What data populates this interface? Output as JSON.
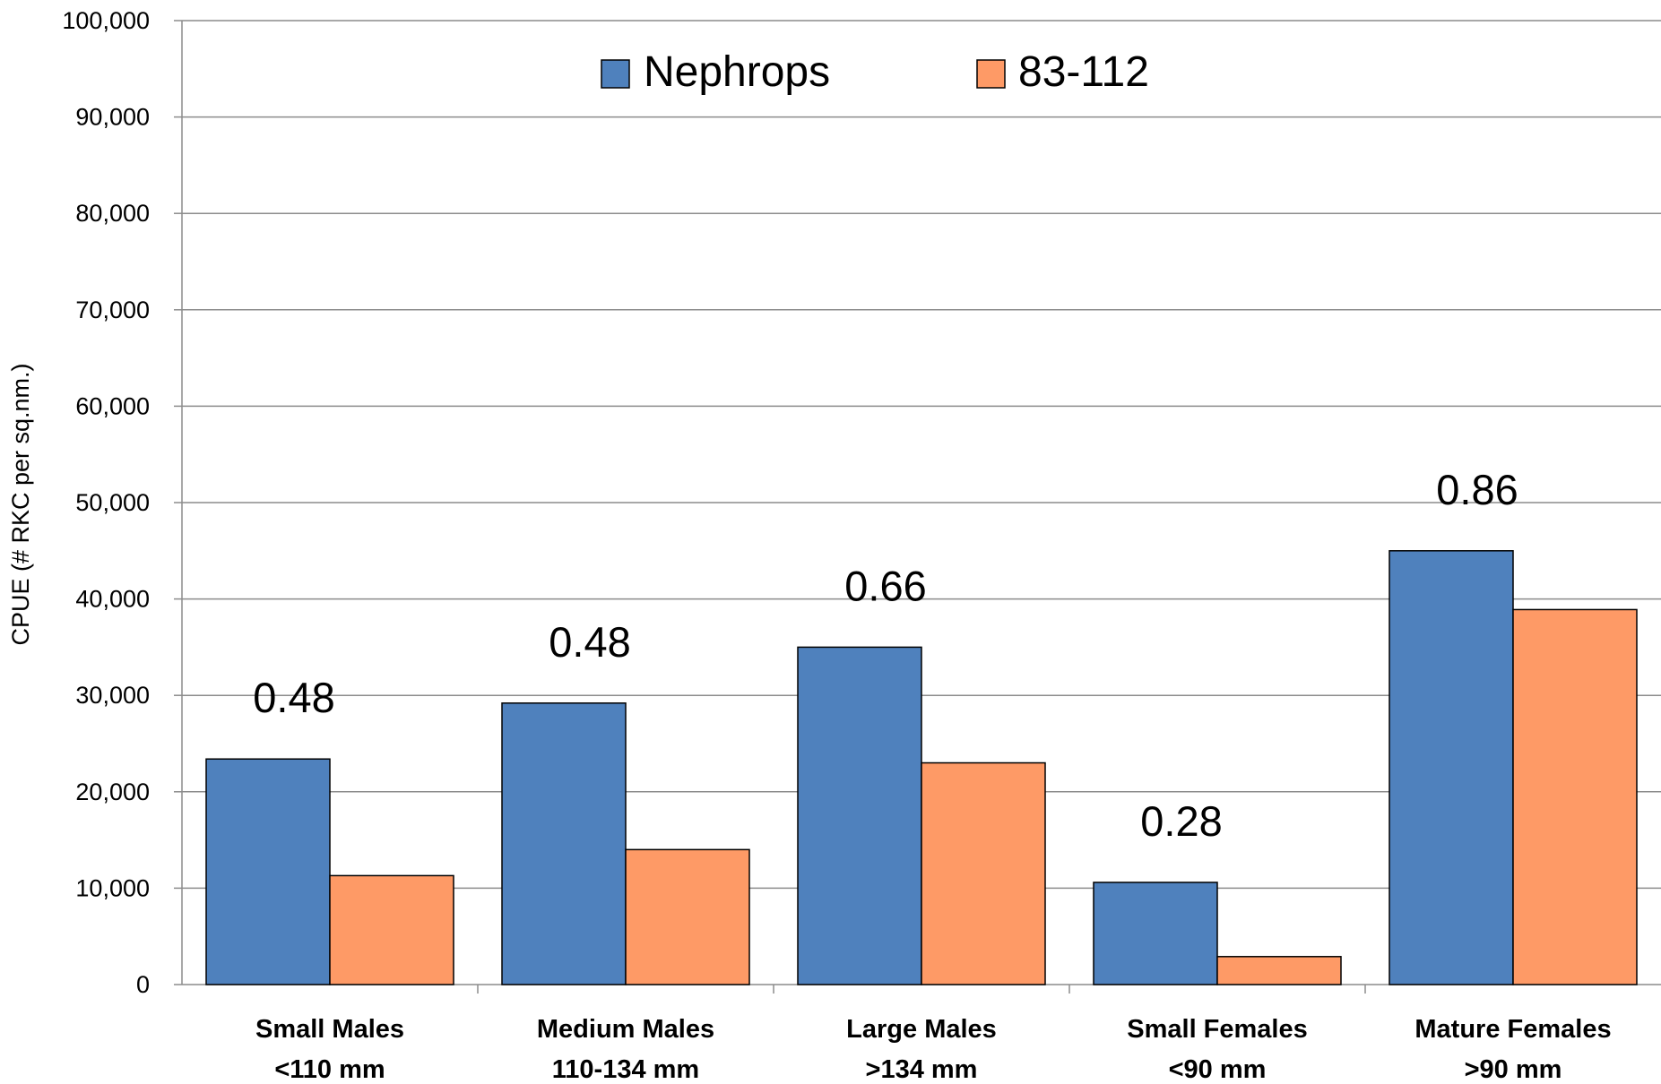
{
  "chart_data": {
    "type": "bar",
    "ylabel": "CPUE (# RKC per sq.nm.)",
    "xlabel": "",
    "ylim": [
      0,
      100000
    ],
    "yticks": [
      0,
      10000,
      20000,
      30000,
      40000,
      50000,
      60000,
      70000,
      80000,
      90000,
      100000
    ],
    "ytick_labels": [
      "0",
      "10,000",
      "20,000",
      "30,000",
      "40,000",
      "50,000",
      "60,000",
      "70,000",
      "80,000",
      "90,000",
      "100,000"
    ],
    "grid": true,
    "legend_position": "top-center",
    "categories": [
      [
        "Small Males",
        "<110 mm"
      ],
      [
        "Medium Males",
        "110-134 mm"
      ],
      [
        "Large Males",
        ">134 mm"
      ],
      [
        "Small Females",
        "<90 mm"
      ],
      [
        "Mature Females",
        ">90 mm"
      ]
    ],
    "series": [
      {
        "name": "Nephrops",
        "color": "#4f81bd",
        "values": [
          23400,
          29200,
          35000,
          10600,
          45000
        ]
      },
      {
        "name": "83-112",
        "color": "#fe9a66",
        "values": [
          11300,
          14000,
          23000,
          2900,
          38900
        ]
      }
    ],
    "annotations": [
      "0.48",
      "0.48",
      "0.66",
      "0.28",
      "0.86"
    ]
  }
}
